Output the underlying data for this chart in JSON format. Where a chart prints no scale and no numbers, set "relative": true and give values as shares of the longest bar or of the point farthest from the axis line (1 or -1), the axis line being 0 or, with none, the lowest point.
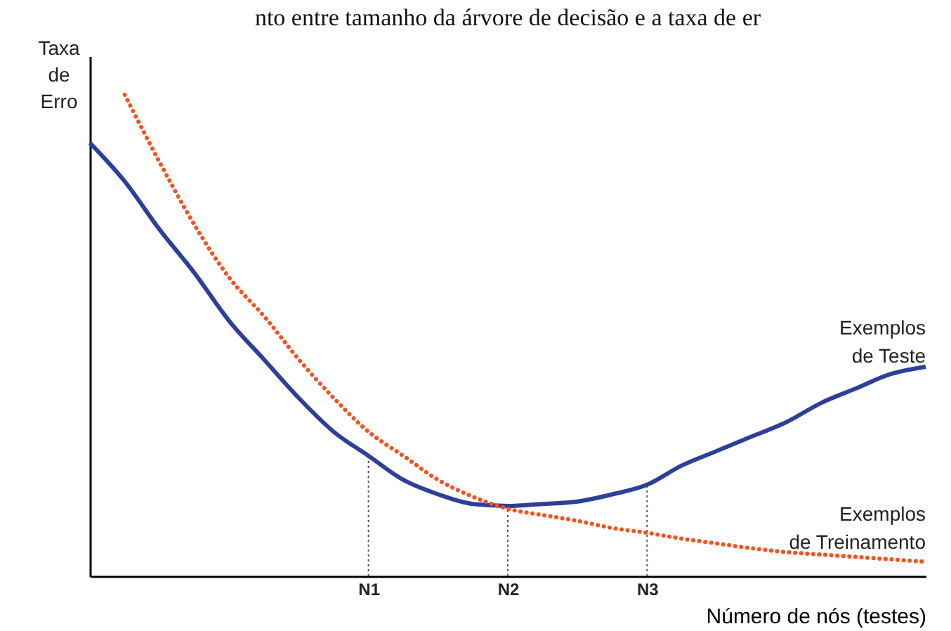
{
  "chart_data": {
    "type": "line",
    "title": "nto entre tamanho da árvore de decisão e a taxa de er",
    "xlabel": "Número de nós (testes)",
    "ylabel": "Taxa de Erro",
    "relative": true,
    "grid": false,
    "categories": [
      null,
      null,
      null,
      null,
      null,
      null,
      null,
      null,
      "N1",
      null,
      null,
      null,
      "N2",
      null,
      null,
      null,
      "N3",
      null,
      null,
      null,
      null,
      null,
      null,
      null,
      null
    ],
    "ref_lines": [
      {
        "axis": "x",
        "value": "N1",
        "color": "#555555",
        "line_style": "dotted"
      },
      {
        "axis": "x",
        "value": "N2",
        "color": "#555555",
        "line_style": "dotted"
      },
      {
        "axis": "x",
        "value": "N3",
        "color": "#555555",
        "line_style": "dotted"
      }
    ],
    "series": [
      {
        "name": "Exemplos de Teste",
        "color": "#2e3f99",
        "line_style": "solid",
        "values": [
          0.9,
          0.82,
          0.72,
          0.63,
          0.53,
          0.45,
          0.37,
          0.3,
          0.25,
          0.2,
          0.17,
          0.15,
          0.146,
          0.15,
          0.155,
          0.17,
          0.19,
          0.23,
          0.26,
          0.29,
          0.32,
          0.36,
          0.39,
          0.42,
          0.435
        ]
      },
      {
        "name": "Exemplos de Treinamento",
        "color": "#ee5522",
        "line_style": "dotted",
        "values": [
          null,
          1,
          0.86,
          0.73,
          0.62,
          0.54,
          0.45,
          0.37,
          0.3,
          0.25,
          0.2,
          0.165,
          0.14,
          0.127,
          0.115,
          0.1,
          0.09,
          0.078,
          0.068,
          0.058,
          0.05,
          0.045,
          0.04,
          0.035,
          0.03
        ]
      }
    ]
  }
}
